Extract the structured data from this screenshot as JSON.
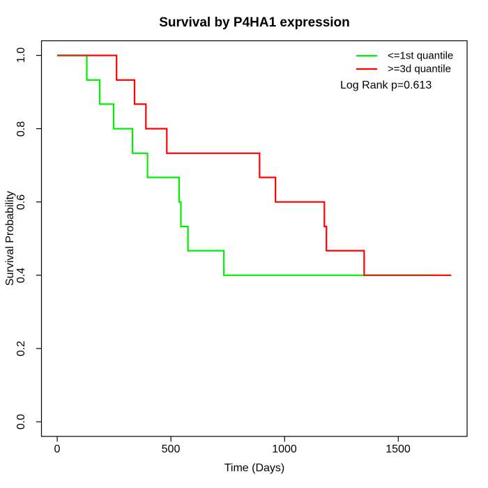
{
  "title": "Survival by P4HA1 expression",
  "axes": {
    "x": {
      "label": "Time (Days)",
      "ticks": [
        "0",
        "500",
        "1000",
        "1500"
      ]
    },
    "y": {
      "label": "Survival Probability",
      "ticks": [
        "0.0",
        "0.2",
        "0.4",
        "0.6",
        "0.8",
        "1.0"
      ]
    }
  },
  "legend": {
    "items": [
      {
        "label": "<=1st quantile",
        "color": "#00ee00"
      },
      {
        "label": ">=3d quantile",
        "color": "#ff0000"
      }
    ],
    "note": "Log Rank p=0.613"
  },
  "chart_data": {
    "type": "line",
    "subtype": "kaplan-meier-step",
    "title": "Survival by P4HA1 expression",
    "xlabel": "Time (Days)",
    "ylabel": "Survival Probability",
    "xlim": [
      -69.3,
      1802.7
    ],
    "ylim": [
      -0.04,
      1.04
    ],
    "x_ticks": [
      0,
      500,
      1000,
      1500
    ],
    "y_ticks": [
      0.0,
      0.2,
      0.4,
      0.6,
      0.8,
      1.0
    ],
    "grid": false,
    "legend_position": "top-right",
    "annotation": "Log Rank p=0.613",
    "series": [
      {
        "name": "<=1st quantile",
        "color": "#00ee00",
        "points": [
          [
            0,
            1.0
          ],
          [
            130,
            0.933
          ],
          [
            187,
            0.867
          ],
          [
            248,
            0.8
          ],
          [
            331,
            0.733
          ],
          [
            397,
            0.667
          ],
          [
            536,
            0.6
          ],
          [
            544,
            0.533
          ],
          [
            575,
            0.467
          ],
          [
            733,
            0.4
          ]
        ],
        "end_time": 1645
      },
      {
        "name": ">=3d quantile",
        "color": "#ff0000",
        "points": [
          [
            0,
            1.0
          ],
          [
            261,
            0.933
          ],
          [
            340,
            0.867
          ],
          [
            390,
            0.8
          ],
          [
            482,
            0.733
          ],
          [
            890,
            0.667
          ],
          [
            960,
            0.6
          ],
          [
            1175,
            0.533
          ],
          [
            1184,
            0.467
          ],
          [
            1350,
            0.4
          ]
        ],
        "end_time": 1733
      }
    ],
    "overlap_color": "#bf3a10"
  }
}
